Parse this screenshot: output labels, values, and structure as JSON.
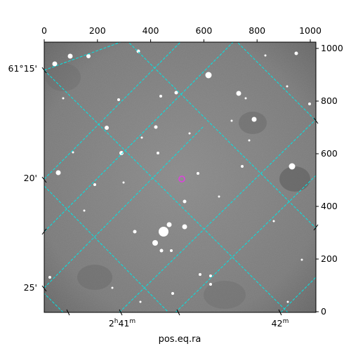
{
  "figure": {
    "xlabel": "pos.eq.ra",
    "top_axis_ticks": [
      "0",
      "200",
      "400",
      "600",
      "800",
      "1000"
    ],
    "right_axis_ticks": [
      "0",
      "200",
      "400",
      "600",
      "800",
      "1000"
    ],
    "left_axis_ticks": [
      "61°15'",
      "20'",
      "25'"
    ],
    "bottom_axis_ticks": [
      {
        "base": "2",
        "sup1": "h",
        "rest": "41",
        "sup2": "m"
      },
      {
        "base": "42",
        "sup1": "m",
        "rest": "",
        "sup2": ""
      }
    ]
  },
  "colors": {
    "background": "#7a7a7a",
    "grid": "#00e5e5",
    "marker": "#e040e0"
  }
}
